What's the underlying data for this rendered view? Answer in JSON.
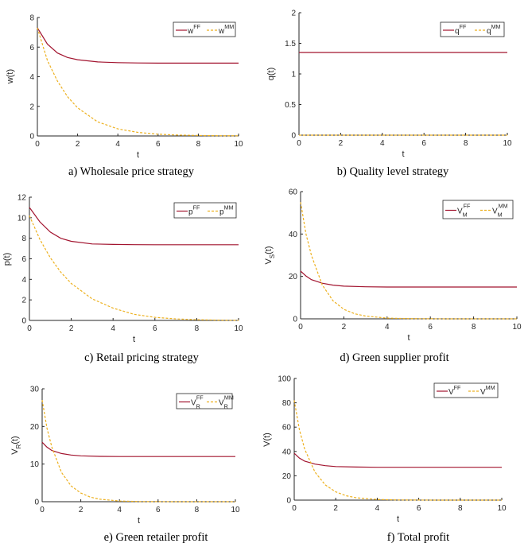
{
  "colors": {
    "ff": "#a2142f",
    "mm": "#edb120",
    "axis": "#262626"
  },
  "chart_data": [
    {
      "type": "line",
      "caption": "a) Wholesale price strategy",
      "xlabel": "t",
      "ylabel": "w(t)",
      "ylabel_sub": "",
      "xlim": [
        0,
        10
      ],
      "ylim": [
        0,
        8
      ],
      "xticks": [
        "0",
        "2",
        "4",
        "6",
        "8",
        "10"
      ],
      "yticks": [
        "0",
        "2",
        "4",
        "6",
        "8"
      ],
      "legend": {
        "position": "top-right",
        "entries": [
          {
            "base": "w",
            "sub": "",
            "sup": "FF"
          },
          {
            "base": "w",
            "sub": "",
            "sup": "MM"
          }
        ]
      },
      "series": [
        {
          "style": "solid",
          "x": [
            0,
            0.5,
            1,
            1.5,
            2,
            3,
            4,
            5,
            6,
            7,
            8,
            9,
            10
          ],
          "y": [
            7.3,
            6.2,
            5.6,
            5.3,
            5.15,
            5.0,
            4.95,
            4.93,
            4.92,
            4.92,
            4.92,
            4.92,
            4.92
          ]
        },
        {
          "style": "dashed",
          "x": [
            0,
            0.5,
            1,
            1.5,
            2,
            3,
            4,
            5,
            6,
            7,
            8,
            9,
            10
          ],
          "y": [
            7.3,
            5.1,
            3.7,
            2.65,
            1.9,
            0.95,
            0.48,
            0.24,
            0.12,
            0.06,
            0.03,
            0.015,
            0.01
          ]
        }
      ]
    },
    {
      "type": "line",
      "caption": "b) Quality level strategy",
      "xlabel": "t",
      "ylabel": "q(t)",
      "ylabel_sub": "",
      "xlim": [
        0,
        10
      ],
      "ylim": [
        0,
        2
      ],
      "xticks": [
        "0",
        "2",
        "4",
        "6",
        "8",
        "10"
      ],
      "yticks": [
        "0",
        "0.5",
        "1",
        "1.5",
        "2"
      ],
      "legend": {
        "position": "top-right",
        "entries": [
          {
            "base": "q",
            "sub": "",
            "sup": "FF"
          },
          {
            "base": "q",
            "sub": "",
            "sup": "MM"
          }
        ]
      },
      "series": [
        {
          "style": "solid",
          "x": [
            0,
            10
          ],
          "y": [
            1.35,
            1.35
          ]
        },
        {
          "style": "dashed",
          "x": [
            0,
            10
          ],
          "y": [
            0,
            0
          ]
        }
      ]
    },
    {
      "type": "line",
      "caption": "c) Retail pricing strategy",
      "xlabel": "t",
      "ylabel": "p(t)",
      "ylabel_sub": "",
      "xlim": [
        0,
        10
      ],
      "ylim": [
        0,
        12
      ],
      "xticks": [
        "0",
        "2",
        "4",
        "6",
        "8",
        "10"
      ],
      "yticks": [
        "0",
        "2",
        "4",
        "6",
        "8",
        "10",
        "12"
      ],
      "legend": {
        "position": "top-right",
        "entries": [
          {
            "base": "p",
            "sub": "",
            "sup": "FF"
          },
          {
            "base": "p",
            "sub": "",
            "sup": "MM"
          }
        ]
      },
      "series": [
        {
          "style": "solid",
          "x": [
            0,
            0.5,
            1,
            1.5,
            2,
            3,
            4,
            5,
            6,
            7,
            8,
            9,
            10
          ],
          "y": [
            11.0,
            9.6,
            8.6,
            8.0,
            7.7,
            7.45,
            7.4,
            7.38,
            7.37,
            7.37,
            7.37,
            7.37,
            7.37
          ]
        },
        {
          "style": "dashed",
          "x": [
            0,
            0.5,
            1,
            1.5,
            2,
            3,
            4,
            5,
            6,
            7,
            8,
            9,
            10
          ],
          "y": [
            10.2,
            7.9,
            6.1,
            4.7,
            3.6,
            2.1,
            1.2,
            0.6,
            0.3,
            0.15,
            0.07,
            0.03,
            0.01
          ]
        }
      ]
    },
    {
      "type": "line",
      "caption": "d) Green supplier profit",
      "xlabel": "t",
      "ylabel": "V",
      "ylabel_sub": "S",
      "ylabel_suffix": "(t)",
      "xlim": [
        0,
        10
      ],
      "ylim": [
        0,
        60
      ],
      "xticks": [
        "0",
        "2",
        "4",
        "6",
        "8",
        "10"
      ],
      "yticks": [
        "0",
        "20",
        "40",
        "60"
      ],
      "legend": {
        "position": "top-right",
        "entries": [
          {
            "base": "V",
            "sub": "M",
            "sup": "FF"
          },
          {
            "base": "V",
            "sub": "M",
            "sup": "MM"
          }
        ]
      },
      "series": [
        {
          "style": "solid",
          "x": [
            0,
            0.25,
            0.5,
            1,
            1.5,
            2,
            3,
            4,
            5,
            6,
            7,
            8,
            9,
            10
          ],
          "y": [
            22.5,
            20.2,
            18.5,
            16.8,
            15.9,
            15.4,
            15.1,
            15.0,
            15.0,
            15.0,
            15.0,
            15.0,
            15.0,
            15.0
          ]
        },
        {
          "style": "dashed",
          "x": [
            0,
            0.25,
            0.5,
            1,
            1.5,
            2,
            2.5,
            3,
            4,
            5,
            6,
            7,
            8,
            9,
            10
          ],
          "y": [
            55,
            40,
            30,
            16,
            8.5,
            4.5,
            2.4,
            1.3,
            0.35,
            0.1,
            0.03,
            0.01,
            0,
            0,
            0
          ]
        }
      ]
    },
    {
      "type": "line",
      "caption": "e) Green retailer profit",
      "xlabel": "t",
      "ylabel": "V",
      "ylabel_sub": "R",
      "ylabel_suffix": "(t)",
      "xlim": [
        0,
        10
      ],
      "ylim": [
        0,
        30
      ],
      "xticks": [
        "0",
        "2",
        "4",
        "6",
        "8",
        "10"
      ],
      "yticks": [
        "0",
        "10",
        "20",
        "30"
      ],
      "legend": {
        "position": "top-right",
        "entries": [
          {
            "base": "V",
            "sub": "R",
            "sup": "FF"
          },
          {
            "base": "V",
            "sub": "R",
            "sup": "MM"
          }
        ]
      },
      "series": [
        {
          "style": "solid",
          "x": [
            0,
            0.25,
            0.5,
            1,
            1.5,
            2,
            3,
            4,
            5,
            6,
            7,
            8,
            9,
            10
          ],
          "y": [
            15.8,
            14.5,
            13.6,
            12.8,
            12.4,
            12.2,
            12.05,
            12.0,
            12.0,
            12.0,
            12.0,
            12.0,
            12.0,
            12.0
          ]
        },
        {
          "style": "dashed",
          "x": [
            0,
            0.25,
            0.5,
            1,
            1.5,
            2,
            2.5,
            3,
            4,
            5,
            6,
            7,
            8,
            9,
            10
          ],
          "y": [
            27,
            19.5,
            14.5,
            7.8,
            4.2,
            2.3,
            1.2,
            0.65,
            0.2,
            0.05,
            0.02,
            0,
            0,
            0,
            0
          ]
        }
      ]
    },
    {
      "type": "line",
      "caption": "f) Total profit",
      "xlabel": "t",
      "ylabel": "V(t)",
      "ylabel_sub": "",
      "xlim": [
        0,
        10
      ],
      "ylim": [
        0,
        100
      ],
      "xticks": [
        "0",
        "2",
        "4",
        "6",
        "8",
        "10"
      ],
      "yticks": [
        "0",
        "20",
        "40",
        "60",
        "80",
        "100"
      ],
      "legend": {
        "position": "top-right",
        "entries": [
          {
            "base": "V",
            "sub": "",
            "sup": "FF"
          },
          {
            "base": "V",
            "sub": "",
            "sup": "MM"
          }
        ]
      },
      "series": [
        {
          "style": "solid",
          "x": [
            0,
            0.25,
            0.5,
            1,
            1.5,
            2,
            3,
            4,
            5,
            6,
            7,
            8,
            9,
            10
          ],
          "y": [
            38.5,
            34.5,
            32.0,
            29.6,
            28.3,
            27.6,
            27.2,
            27.0,
            27.0,
            27.0,
            27.0,
            27.0,
            27.0,
            27.0
          ]
        },
        {
          "style": "dashed",
          "x": [
            0,
            0.25,
            0.5,
            1,
            1.5,
            2,
            2.5,
            3,
            4,
            5,
            6,
            7,
            8,
            9,
            10
          ],
          "y": [
            82,
            58,
            42,
            23,
            12.5,
            6.8,
            3.6,
            1.9,
            0.55,
            0.15,
            0.05,
            0.01,
            0,
            0,
            0
          ]
        }
      ]
    }
  ]
}
